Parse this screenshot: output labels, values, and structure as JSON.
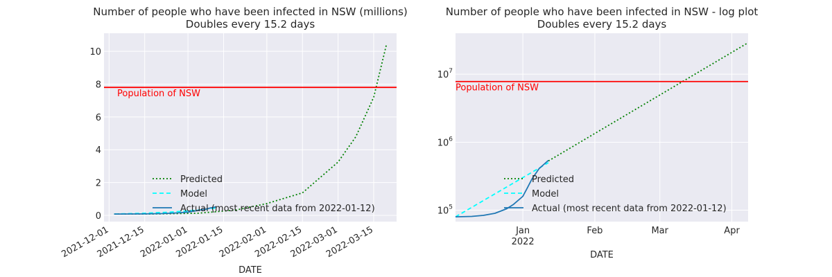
{
  "chart_data": [
    {
      "type": "line",
      "title": "Number of people who have been infected in NSW (millions)",
      "subtitle": "Doubles every 15.2 days",
      "xlabel": "DATE",
      "ylabel": "",
      "yscale": "linear",
      "xlim": [
        "2021-11-29",
        "2022-03-24"
      ],
      "ylim": [
        -0.38,
        11.1
      ],
      "x_ticks": [
        "2021-12-01",
        "2021-12-15",
        "2022-01-01",
        "2022-01-15",
        "2022-02-01",
        "2022-02-15",
        "2022-03-01",
        "2022-03-15"
      ],
      "x_tick_labels": [
        "2021-12-01",
        "2021-12-15",
        "2022-01-01",
        "2022-01-15",
        "2022-02-01",
        "2022-02-15",
        "2022-03-01",
        "2022-03-15"
      ],
      "y_ticks": [
        0,
        2,
        4,
        6,
        8,
        10
      ],
      "y_tick_labels": [
        "0",
        "2",
        "4",
        "6",
        "8",
        "10"
      ],
      "grid": true,
      "legend_position": "lower-center",
      "hline": {
        "y": 7.8,
        "label": "Population of NSW",
        "color": "#ff0000"
      },
      "series": [
        {
          "name": "Predicted",
          "style": "dotted",
          "color": "#008000",
          "x": [
            "2021-12-03",
            "2021-12-20",
            "2022-01-05",
            "2022-01-20",
            "2022-02-01",
            "2022-02-15",
            "2022-03-01",
            "2022-03-08",
            "2022-03-15",
            "2022-03-20"
          ],
          "y": [
            0.08,
            0.09,
            0.13,
            0.33,
            0.72,
            1.37,
            3.25,
            4.8,
            7.2,
            10.4
          ]
        },
        {
          "name": "Model",
          "style": "dashed",
          "color": "#00ffff",
          "x": [
            "2021-12-03",
            "2021-12-15",
            "2021-12-25",
            "2022-01-05",
            "2022-01-12"
          ],
          "y": [
            0.08,
            0.13,
            0.2,
            0.32,
            0.45
          ]
        },
        {
          "name": "Actual (most recent data from 2022-01-12)",
          "style": "solid",
          "color": "#1f77b4",
          "x": [
            "2021-12-03",
            "2021-12-15",
            "2021-12-22",
            "2021-12-28",
            "2022-01-01",
            "2022-01-05",
            "2022-01-08",
            "2022-01-10",
            "2022-01-12"
          ],
          "y": [
            0.08,
            0.09,
            0.11,
            0.15,
            0.2,
            0.3,
            0.38,
            0.46,
            0.52
          ]
        }
      ]
    },
    {
      "type": "line",
      "title": "Number of people who have been infected in NSW - log plot",
      "subtitle": "Doubles every 15.2 days",
      "xlabel": "DATE",
      "ylabel": "",
      "yscale": "log",
      "xlim": [
        "2021-12-03",
        "2022-04-08"
      ],
      "ylim": [
        68000,
        40000000
      ],
      "x_ticks": [
        "2022-01-01",
        "2022-02-01",
        "2022-03-01",
        "2022-04-01"
      ],
      "x_tick_labels": [
        "Jan",
        "Feb",
        "Mar",
        "Apr"
      ],
      "x_tick_sublabel": "2022",
      "y_ticks": [
        100000,
        1000000,
        10000000
      ],
      "y_tick_labels": [
        "10",
        "10",
        "10"
      ],
      "y_tick_exponents": [
        "5",
        "6",
        "7"
      ],
      "grid": true,
      "legend_position": "lower-center",
      "hline": {
        "y": 7800000,
        "label": "Population of NSW",
        "color": "#ff0000"
      },
      "series": [
        {
          "name": "Predicted",
          "style": "dotted",
          "color": "#008000",
          "x": [
            "2022-01-12",
            "2022-04-08"
          ],
          "y": [
            530000,
            29000000
          ]
        },
        {
          "name": "Model",
          "style": "dashed",
          "color": "#00ffff",
          "x": [
            "2021-12-03",
            "2022-01-12"
          ],
          "y": [
            80000,
            500000
          ]
        },
        {
          "name": "Actual (most recent data from 2022-01-12)",
          "style": "solid",
          "color": "#1f77b4",
          "x": [
            "2021-12-03",
            "2021-12-10",
            "2021-12-15",
            "2021-12-20",
            "2021-12-25",
            "2021-12-28",
            "2022-01-01",
            "2022-01-03",
            "2022-01-05",
            "2022-01-08",
            "2022-01-10",
            "2022-01-12"
          ],
          "y": [
            80000,
            81000,
            84000,
            90000,
            105000,
            122000,
            160000,
            215000,
            290000,
            410000,
            470000,
            540000
          ]
        }
      ]
    }
  ]
}
